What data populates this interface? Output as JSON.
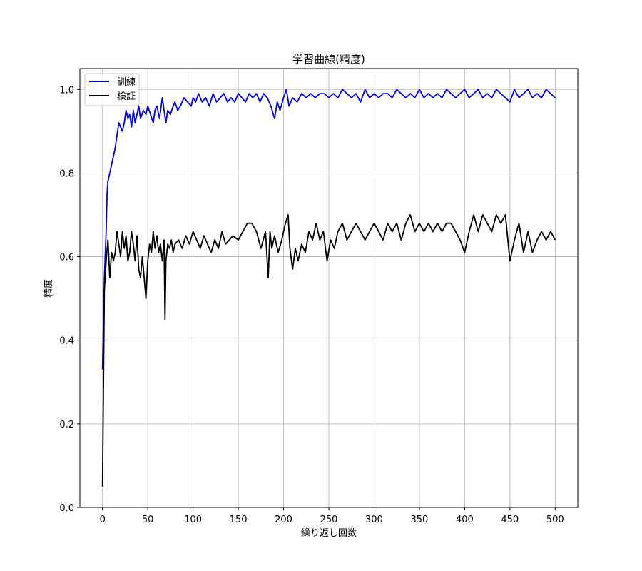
{
  "chart_data": {
    "type": "line",
    "title": "学習曲線(精度)",
    "xlabel": "繰り返し回数",
    "ylabel": "精度",
    "xlim": [
      -25,
      525
    ],
    "ylim": [
      0,
      1.05
    ],
    "x_ticks": [
      0,
      50,
      100,
      150,
      200,
      250,
      300,
      350,
      400,
      450,
      500
    ],
    "y_ticks": [
      0.0,
      0.2,
      0.4,
      0.6,
      0.8,
      1.0
    ],
    "y_tick_labels": [
      "0.0",
      "0.2",
      "0.4",
      "0.6",
      "0.8",
      "1.0"
    ],
    "grid": true,
    "legend": "top-left",
    "series": [
      {
        "name": "訓練",
        "color": "#0000ff",
        "x": [
          0,
          2,
          4,
          5,
          6,
          8,
          10,
          12,
          14,
          16,
          18,
          20,
          22,
          24,
          26,
          28,
          30,
          32,
          34,
          36,
          38,
          40,
          42,
          45,
          48,
          50,
          53,
          56,
          58,
          60,
          63,
          66,
          68,
          70,
          72,
          75,
          78,
          80,
          83,
          86,
          90,
          94,
          98,
          100,
          103,
          106,
          110,
          114,
          118,
          122,
          126,
          130,
          134,
          138,
          142,
          146,
          150,
          154,
          158,
          162,
          166,
          170,
          174,
          178,
          182,
          186,
          190,
          193,
          196,
          200,
          203,
          206,
          210,
          215,
          220,
          225,
          230,
          235,
          240,
          245,
          250,
          255,
          260,
          265,
          270,
          275,
          280,
          285,
          290,
          295,
          300,
          305,
          310,
          315,
          320,
          325,
          330,
          335,
          340,
          345,
          350,
          355,
          360,
          365,
          370,
          375,
          380,
          385,
          390,
          395,
          400,
          405,
          410,
          415,
          420,
          425,
          430,
          435,
          440,
          445,
          450,
          455,
          460,
          465,
          470,
          475,
          480,
          485,
          490,
          495,
          500
        ],
        "values": [
          0.33,
          0.55,
          0.66,
          0.75,
          0.78,
          0.8,
          0.82,
          0.84,
          0.86,
          0.89,
          0.92,
          0.91,
          0.9,
          0.92,
          0.95,
          0.93,
          0.94,
          0.91,
          0.95,
          0.92,
          0.94,
          0.96,
          0.93,
          0.95,
          0.94,
          0.96,
          0.94,
          0.92,
          0.95,
          0.96,
          0.93,
          0.98,
          0.95,
          0.92,
          0.95,
          0.94,
          0.96,
          0.97,
          0.95,
          0.96,
          0.98,
          0.97,
          0.96,
          0.98,
          0.97,
          0.99,
          0.97,
          0.98,
          0.96,
          0.99,
          0.97,
          0.98,
          0.99,
          0.97,
          0.98,
          0.97,
          0.99,
          0.98,
          0.97,
          0.99,
          0.98,
          0.99,
          0.97,
          0.99,
          0.98,
          0.96,
          0.93,
          0.97,
          0.95,
          0.98,
          1.0,
          0.96,
          0.98,
          0.97,
          0.99,
          0.98,
          0.99,
          0.98,
          0.99,
          0.99,
          0.98,
          0.99,
          0.98,
          1.0,
          0.99,
          0.98,
          0.99,
          0.97,
          1.0,
          0.98,
          0.99,
          0.98,
          0.99,
          0.99,
          0.98,
          1.0,
          0.99,
          0.98,
          0.99,
          0.98,
          1.0,
          0.98,
          0.99,
          0.98,
          0.99,
          0.98,
          1.0,
          0.99,
          0.98,
          0.99,
          1.0,
          0.98,
          0.99,
          1.0,
          0.98,
          0.99,
          0.98,
          1.0,
          0.99,
          0.98,
          0.97,
          1.0,
          0.98,
          0.99,
          1.0,
          0.98,
          0.99,
          0.98,
          1.0,
          0.99,
          0.98
        ]
      },
      {
        "name": "検証",
        "color": "#000000",
        "x": [
          0,
          2,
          4,
          6,
          8,
          10,
          12,
          14,
          16,
          18,
          20,
          22,
          24,
          26,
          28,
          30,
          32,
          34,
          36,
          38,
          40,
          42,
          44,
          46,
          48,
          50,
          52,
          54,
          56,
          58,
          60,
          62,
          64,
          66,
          68,
          69,
          70,
          72,
          74,
          76,
          78,
          80,
          84,
          88,
          92,
          96,
          100,
          104,
          108,
          112,
          116,
          120,
          124,
          128,
          132,
          136,
          140,
          144,
          150,
          155,
          160,
          165,
          170,
          175,
          180,
          183,
          185,
          187,
          190,
          194,
          198,
          202,
          205,
          207,
          210,
          213,
          216,
          220,
          224,
          228,
          232,
          236,
          240,
          244,
          248,
          252,
          256,
          260,
          265,
          270,
          275,
          280,
          285,
          290,
          295,
          300,
          305,
          310,
          315,
          320,
          325,
          330,
          335,
          340,
          345,
          350,
          355,
          360,
          365,
          370,
          375,
          380,
          385,
          390,
          395,
          400,
          405,
          410,
          415,
          420,
          425,
          430,
          435,
          440,
          445,
          450,
          455,
          460,
          465,
          470,
          475,
          480,
          485,
          490,
          495,
          500
        ],
        "values": [
          0.05,
          0.52,
          0.59,
          0.64,
          0.55,
          0.61,
          0.59,
          0.61,
          0.66,
          0.63,
          0.6,
          0.66,
          0.62,
          0.65,
          0.59,
          0.61,
          0.66,
          0.63,
          0.59,
          0.65,
          0.57,
          0.55,
          0.6,
          0.55,
          0.5,
          0.59,
          0.63,
          0.61,
          0.66,
          0.62,
          0.65,
          0.61,
          0.63,
          0.59,
          0.64,
          0.45,
          0.59,
          0.63,
          0.62,
          0.64,
          0.61,
          0.63,
          0.64,
          0.62,
          0.65,
          0.63,
          0.66,
          0.64,
          0.62,
          0.65,
          0.63,
          0.61,
          0.64,
          0.62,
          0.66,
          0.63,
          0.64,
          0.65,
          0.64,
          0.66,
          0.68,
          0.68,
          0.66,
          0.62,
          0.66,
          0.55,
          0.66,
          0.62,
          0.65,
          0.61,
          0.64,
          0.68,
          0.7,
          0.62,
          0.57,
          0.62,
          0.59,
          0.63,
          0.61,
          0.66,
          0.64,
          0.68,
          0.64,
          0.66,
          0.59,
          0.64,
          0.62,
          0.66,
          0.68,
          0.64,
          0.66,
          0.68,
          0.66,
          0.64,
          0.66,
          0.68,
          0.66,
          0.64,
          0.68,
          0.66,
          0.68,
          0.64,
          0.68,
          0.7,
          0.66,
          0.68,
          0.66,
          0.68,
          0.66,
          0.68,
          0.66,
          0.68,
          0.68,
          0.66,
          0.64,
          0.61,
          0.66,
          0.7,
          0.66,
          0.7,
          0.68,
          0.66,
          0.7,
          0.68,
          0.7,
          0.59,
          0.64,
          0.68,
          0.61,
          0.66,
          0.61,
          0.64,
          0.66,
          0.64,
          0.66,
          0.64
        ]
      }
    ]
  }
}
